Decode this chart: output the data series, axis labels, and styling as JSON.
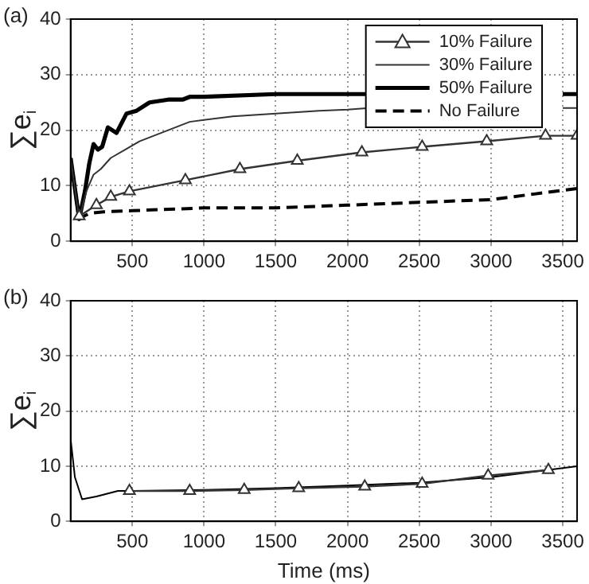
{
  "chart_data": [
    {
      "type": "line",
      "title": "(a)",
      "ylabel": "∑e$_{i}$",
      "xlim": [
        70,
        3600
      ],
      "xticks": [
        500,
        1000,
        1500,
        2000,
        2500,
        3000,
        3500
      ],
      "ylim": [
        0,
        40
      ],
      "yticks": [
        0,
        10,
        20,
        30,
        40
      ],
      "grid": true,
      "legend": "top right",
      "series": [
        {
          "name": "10% Failure",
          "color": "#333333",
          "marker": "triangle",
          "x": [
            130,
            250,
            350,
            480,
            870,
            1250,
            1650,
            2100,
            2520,
            2970,
            3380,
            3600
          ],
          "values": [
            4.5,
            6.5,
            8,
            9,
            11,
            13,
            14.5,
            16,
            17,
            18,
            19,
            19
          ]
        },
        {
          "name": "30% Failure",
          "color": "#333333",
          "x": [
            70,
            130,
            180,
            230,
            280,
            350,
            450,
            550,
            700,
            900,
            1200,
            1500,
            1800,
            2000,
            2150,
            2700,
            3000,
            3500,
            3600
          ],
          "values": [
            15,
            4,
            9,
            12,
            13,
            15,
            16.5,
            18,
            19.5,
            21.5,
            22.5,
            23,
            23.5,
            23.7,
            24,
            null,
            null,
            24,
            24
          ]
        },
        {
          "name": "50% Failure",
          "color": "#000000",
          "x": [
            70,
            130,
            170,
            200,
            230,
            260,
            290,
            330,
            360,
            390,
            420,
            460,
            530,
            620,
            750,
            850,
            900,
            1000,
            1500,
            2000,
            2150,
            3000,
            3500,
            3600
          ],
          "values": [
            15,
            4,
            9,
            14,
            17.5,
            16.5,
            17,
            20.5,
            20,
            19.5,
            21,
            23,
            23.5,
            25,
            25.5,
            25.5,
            26,
            26,
            26.5,
            26.5,
            26.5,
            null,
            26.5,
            26.5
          ]
        },
        {
          "name": "No Failure",
          "color": "#000000",
          "line_style": "dashed",
          "x": [
            120,
            200,
            300,
            500,
            1000,
            1500,
            2000,
            2500,
            3000,
            3300,
            3600
          ],
          "values": [
            4,
            5,
            5.3,
            5.5,
            6,
            6,
            6.5,
            7,
            7.5,
            8.5,
            9.5
          ]
        }
      ]
    },
    {
      "type": "line",
      "title": "(b)",
      "xlabel": "Time (ms)",
      "ylabel": "∑e$_{i}$",
      "xlim": [
        70,
        3600
      ],
      "xticks": [
        500,
        1000,
        1500,
        2000,
        2500,
        3000,
        3500
      ],
      "ylim": [
        0,
        40
      ],
      "yticks": [
        0,
        10,
        20,
        30,
        40
      ],
      "grid": true,
      "series": [
        {
          "color": "#333333",
          "marker": "triangle",
          "x": [
            480,
            900,
            1280,
            1660,
            2120,
            2520,
            2980,
            3400
          ],
          "values": [
            5.5,
            5.5,
            5.7,
            6,
            6.3,
            6.8,
            8.3,
            9.3
          ]
        },
        {
          "color": "#000000",
          "x": [
            70,
            100,
            150,
            250,
            400,
            500,
            1000,
            1500,
            2000,
            2500,
            3000,
            3600
          ],
          "values": [
            15,
            8,
            4,
            4.5,
            5.5,
            5.5,
            5.7,
            6,
            6.5,
            7,
            8,
            10
          ]
        }
      ]
    }
  ]
}
